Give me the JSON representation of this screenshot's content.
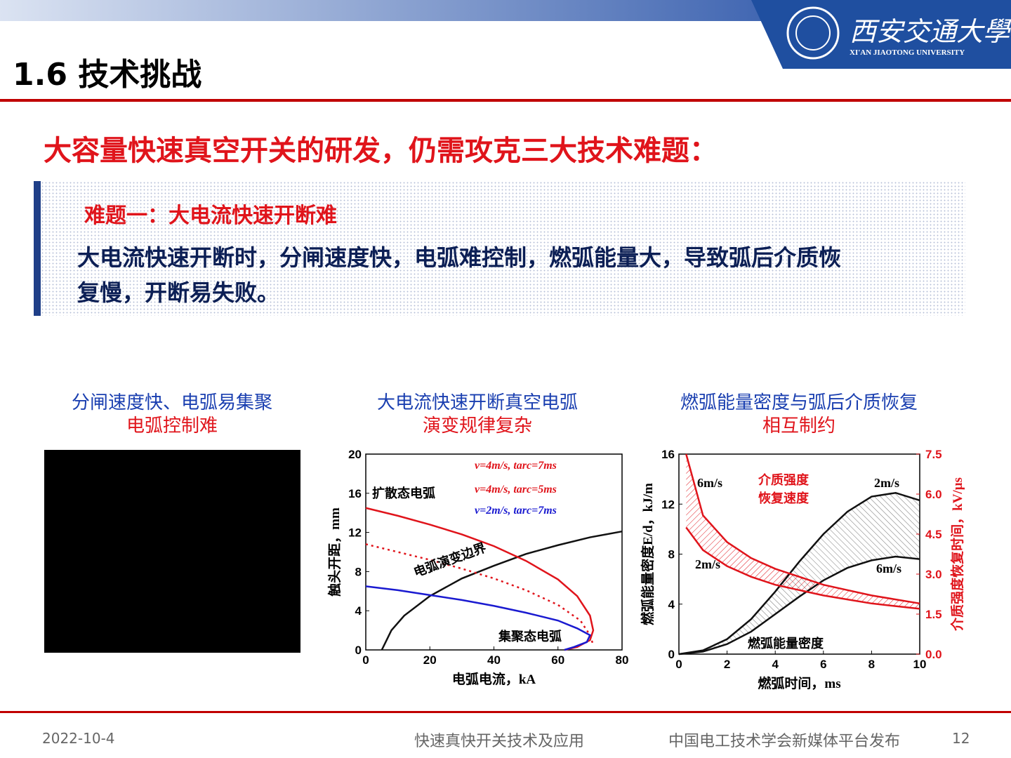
{
  "header": {
    "title": "1.6 技术挑战",
    "logo_name": "西安交通大學",
    "logo_sub": "XI'AN JIAOTONG UNIVERSITY"
  },
  "headline": "大容量快速真空开关的研发，仍需攻克三大技术难题：",
  "box": {
    "subtitle": "难题一：大电流快速开断难",
    "body": [
      "大电流快速开断时，分闸速度快，电弧难控制，燃弧能量大，导致弧后介质恢",
      "复慢，开断易失败。"
    ]
  },
  "captions": [
    [
      "分闸速度快、电弧易集聚",
      "电弧控制难"
    ],
    [
      "大电流快速开断真空电弧",
      "演变规律复杂"
    ],
    [
      "燃弧能量密度与弧后介质恢复",
      "相互制约"
    ]
  ],
  "chart_data": [
    {
      "type": "line",
      "xlabel": "电弧电流，kA",
      "ylabel": "触头开距，mm",
      "xlim": [
        0,
        80
      ],
      "xticks": [
        0,
        20,
        40,
        60,
        80
      ],
      "ylim": [
        0,
        20
      ],
      "yticks": [
        0,
        4,
        8,
        12,
        16,
        20
      ],
      "annotations": [
        "扩散态电弧",
        "电弧演变边界",
        "集聚态电弧"
      ],
      "series": [
        {
          "name": "电弧演变边界",
          "color": "#111111",
          "x": [
            5,
            8,
            12,
            20,
            30,
            40,
            50,
            60,
            70,
            80
          ],
          "values": [
            0,
            2,
            3.5,
            5.5,
            7.3,
            8.6,
            9.8,
            10.7,
            11.5,
            12.1
          ]
        },
        {
          "name": "v=4m/s, tarc=7ms",
          "color": "#e0141b",
          "x": [
            0,
            10,
            20,
            30,
            40,
            50,
            60,
            66,
            70,
            71,
            70,
            66,
            62
          ],
          "values": [
            14.5,
            13.7,
            12.8,
            11.8,
            10.6,
            9.1,
            7.2,
            5.5,
            3.5,
            2,
            1,
            0.3,
            0
          ]
        },
        {
          "name": "v=4m/s, tarc=5ms",
          "color": "#e0141b",
          "dashed": true,
          "x": [
            0,
            10,
            20,
            30,
            40,
            50,
            60,
            67,
            70,
            71
          ],
          "values": [
            10.8,
            10,
            9.2,
            8.3,
            7.3,
            6.1,
            4.6,
            3,
            1.5,
            0.5
          ]
        },
        {
          "name": "v=2m/s, tarc=7ms",
          "color": "#1a1ad0",
          "x": [
            0,
            10,
            20,
            30,
            40,
            50,
            60,
            66,
            70,
            69,
            65,
            62
          ],
          "values": [
            6.5,
            6.1,
            5.6,
            5.1,
            4.5,
            3.8,
            3,
            2.2,
            1.5,
            0.8,
            0.3,
            0
          ]
        }
      ]
    },
    {
      "type": "line",
      "xlabel": "燃弧时间，ms",
      "ylabel": "燃弧能量密度E/d，kJ/m",
      "y2label": "介质强度恢复时间，kV/μs",
      "xlim": [
        0,
        10
      ],
      "xticks": [
        0,
        2,
        4,
        6,
        8,
        10
      ],
      "ylim": [
        0,
        16
      ],
      "yticks": [
        0,
        4,
        8,
        12,
        16
      ],
      "y2lim": [
        0,
        7.5
      ],
      "y2ticks": [
        {
          "value": 0,
          "label": "0.0"
        },
        {
          "value": 1.5,
          "label": "1.5"
        },
        {
          "value": 3,
          "label": "3.0"
        },
        {
          "value": 4.5,
          "label": "4.5"
        },
        {
          "value": 6,
          "label": "6.0"
        },
        {
          "value": 7.5,
          "label": "7.5"
        }
      ],
      "annotations": [
        "6m/s",
        "介质强度",
        "恢复速度",
        "2m/s",
        "2m/s",
        "6m/s",
        "燃弧能量密度"
      ],
      "series": [
        {
          "color": "#111111",
          "x": [
            0,
            1,
            2,
            3,
            4,
            5,
            6,
            7,
            8,
            9,
            10
          ],
          "values": [
            0,
            0.3,
            1.2,
            2.8,
            5,
            7.4,
            9.6,
            11.4,
            12.6,
            12.9,
            12.3
          ]
        },
        {
          "color": "#111111",
          "x": [
            0,
            1,
            2,
            3,
            4,
            5,
            6,
            7,
            8,
            9,
            10
          ],
          "values": [
            0,
            0.2,
            0.8,
            1.8,
            3.2,
            4.6,
            5.9,
            6.9,
            7.5,
            7.8,
            7.6
          ]
        },
        {
          "color": "#e0141b",
          "axis": "y2",
          "x": [
            0.3,
            1,
            2,
            3,
            4,
            5,
            6,
            7,
            8,
            9,
            10
          ],
          "values": [
            7.5,
            5.2,
            4.2,
            3.6,
            3.2,
            2.9,
            2.6,
            2.4,
            2.2,
            2.05,
            1.9
          ]
        },
        {
          "color": "#e0141b",
          "axis": "y2",
          "x": [
            0.3,
            1,
            2,
            3,
            4,
            5,
            6,
            7,
            8,
            9,
            10
          ],
          "values": [
            4.75,
            3.9,
            3.3,
            2.9,
            2.6,
            2.4,
            2.2,
            2.05,
            1.9,
            1.8,
            1.7
          ]
        }
      ]
    }
  ],
  "footer": {
    "date": "2022-10-4",
    "course": "快速真快开关技术及应用",
    "publisher": "中国电工技术学会新媒体平台发布",
    "page": "12"
  }
}
